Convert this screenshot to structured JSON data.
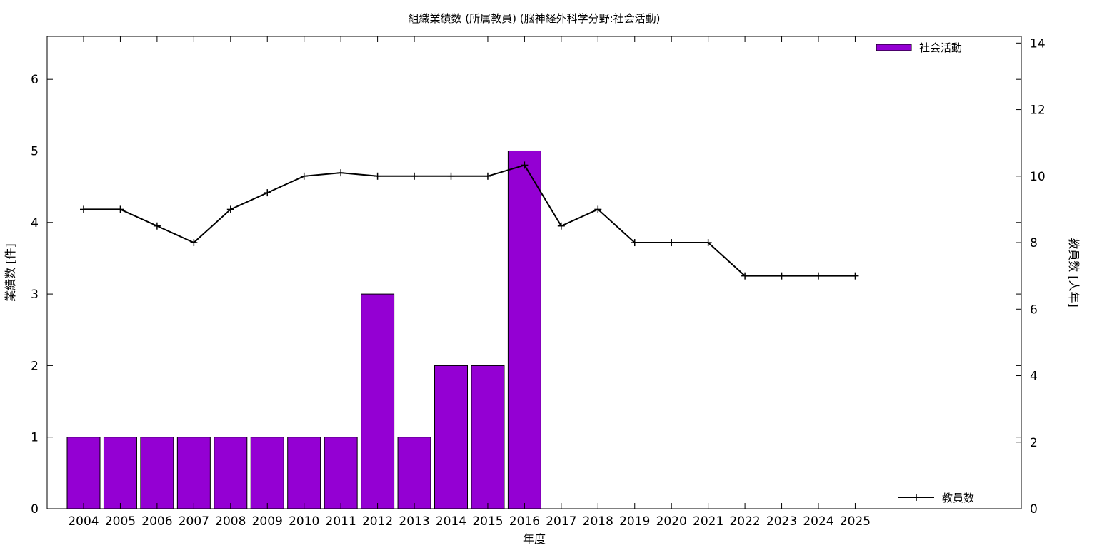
{
  "chart_data": {
    "type": "bar",
    "title": "組織業績数 (所属教員) (脳神経外科学分野:社会活動)",
    "xlabel": "年度",
    "ylabel": "業績数 [件]",
    "y2label": "教員数 [人年]",
    "categories": [
      "2004",
      "2005",
      "2006",
      "2007",
      "2008",
      "2009",
      "2010",
      "2011",
      "2012",
      "2013",
      "2014",
      "2015",
      "2016",
      "2017",
      "2018",
      "2019",
      "2020",
      "2021",
      "2022",
      "2023",
      "2024",
      "2025"
    ],
    "ylim": [
      0,
      6.6
    ],
    "yticks": [
      0,
      1,
      2,
      3,
      4,
      5,
      6
    ],
    "y2lim": [
      0,
      14.2
    ],
    "y2ticks": [
      0,
      2,
      4,
      6,
      8,
      10,
      12,
      14
    ],
    "series": [
      {
        "name": "社会活動",
        "type": "bar",
        "axis": "left",
        "color": "#9400d3",
        "values": [
          1,
          1,
          1,
          1,
          1,
          1,
          1,
          1,
          3,
          1,
          2,
          2,
          5,
          null,
          null,
          null,
          null,
          null,
          null,
          null,
          null,
          null
        ]
      },
      {
        "name": "教員数",
        "type": "line",
        "axis": "right",
        "color": "#000000",
        "values": [
          9,
          9,
          8.5,
          8,
          9,
          9.5,
          10,
          10.1,
          10,
          10,
          10,
          10,
          10.33,
          8.5,
          9,
          8,
          8,
          8,
          7,
          7,
          7,
          7
        ]
      }
    ],
    "legend": [
      "top-right",
      "bottom-right"
    ],
    "grid": false
  }
}
